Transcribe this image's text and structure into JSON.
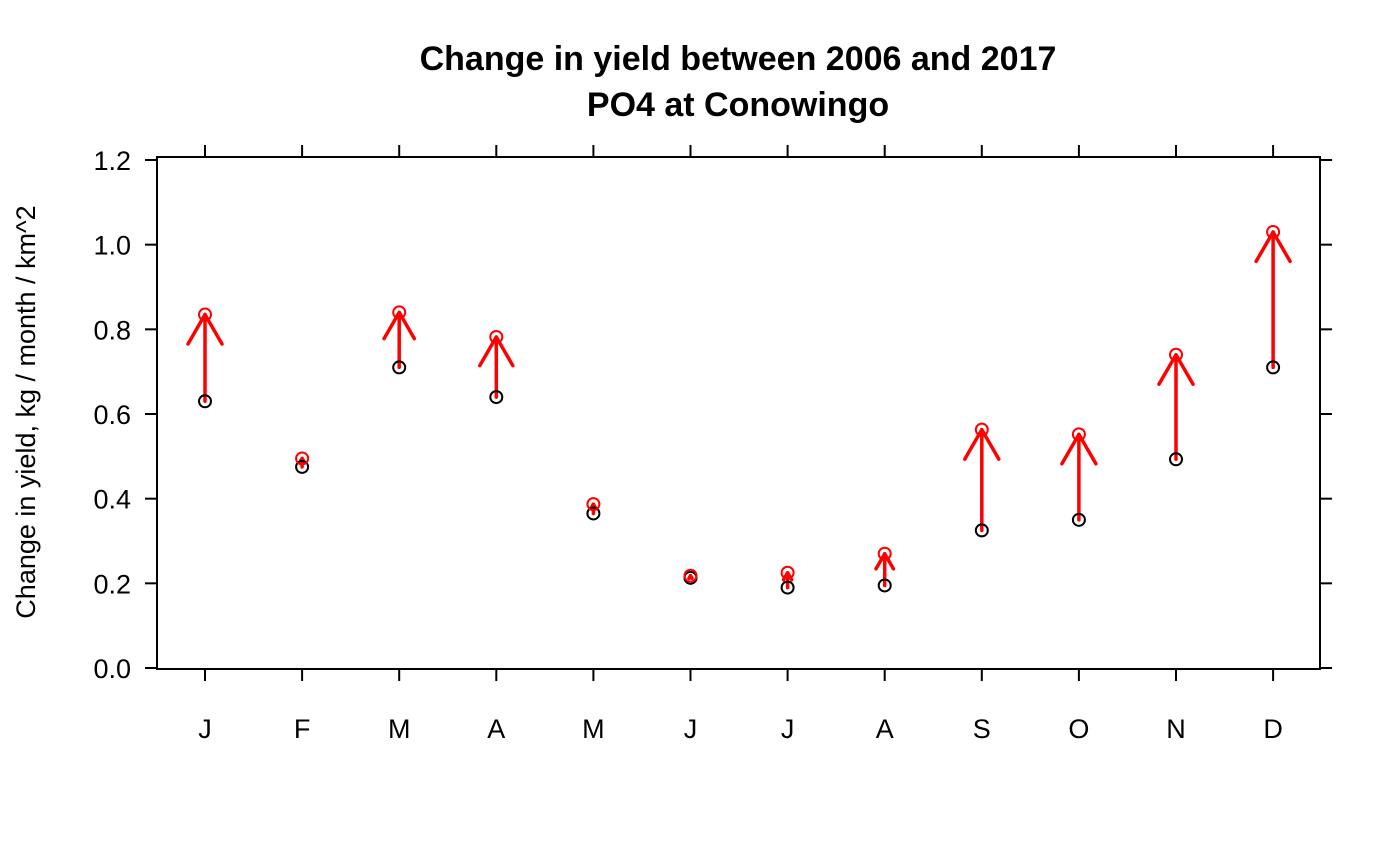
{
  "chart_data": {
    "type": "scatter",
    "title": "Change in yield between 2006 and 2017",
    "subtitle": "PO4 at Conowingo",
    "xlabel": "",
    "ylabel": "Change in yield, kg / month / km^2",
    "categories": [
      "J",
      "F",
      "M",
      "A",
      "M",
      "J",
      "J",
      "A",
      "S",
      "O",
      "N",
      "D"
    ],
    "yticks": [
      "0.0",
      "0.2",
      "0.4",
      "0.6",
      "0.8",
      "1.0",
      "1.2"
    ],
    "ylim": [
      0,
      1.2
    ],
    "grid": false,
    "series": [
      {
        "color": "#000000",
        "values": [
          0.63,
          0.475,
          0.71,
          0.64,
          0.365,
          0.213,
          0.19,
          0.195,
          0.325,
          0.35,
          0.493,
          0.71
        ]
      },
      {
        "color": "#ff0000",
        "values": [
          0.835,
          0.495,
          0.84,
          0.782,
          0.387,
          0.218,
          0.225,
          0.27,
          0.563,
          0.552,
          0.74,
          1.03
        ]
      }
    ],
    "arrow_color": "#ff0000"
  }
}
